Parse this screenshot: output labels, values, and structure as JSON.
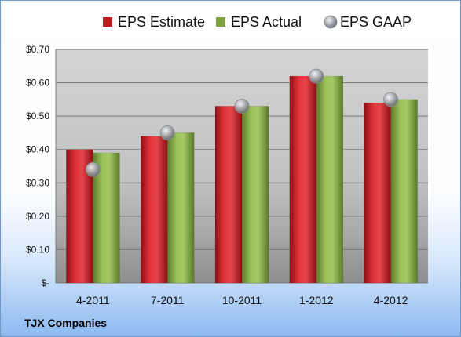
{
  "caption": "TJX Companies",
  "colors": {
    "estimate": "#c0191f",
    "actual": "#7fa341",
    "gaap": "#a9acb0"
  },
  "chart_data": {
    "type": "bar",
    "categories": [
      "4-2011",
      "7-2011",
      "10-2011",
      "1-2012",
      "4-2012"
    ],
    "series": [
      {
        "name": "EPS Estimate",
        "values": [
          0.4,
          0.44,
          0.53,
          0.62,
          0.54
        ]
      },
      {
        "name": "EPS Actual",
        "values": [
          0.39,
          0.45,
          0.53,
          0.62,
          0.55
        ]
      },
      {
        "name": "EPS GAAP",
        "values": [
          0.34,
          0.45,
          0.53,
          0.62,
          0.55
        ],
        "mark": "point"
      }
    ],
    "ylim": [
      0,
      0.7
    ],
    "yticks": [
      0,
      0.1,
      0.2,
      0.3,
      0.4,
      0.5,
      0.6,
      0.7
    ],
    "ytick_labels": [
      "$-",
      "$0.10",
      "$0.20",
      "$0.30",
      "$0.40",
      "$0.50",
      "$0.60",
      "$0.70"
    ],
    "grid": true,
    "legend_position": "top"
  }
}
